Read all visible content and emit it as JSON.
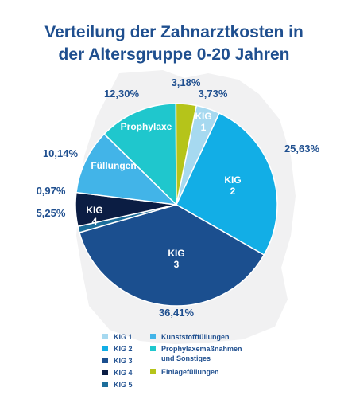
{
  "title": {
    "line1": "Verteilung der Zahnarztkosten in",
    "line2": "der Altersgruppe 0-20 Jahren"
  },
  "chart_data": {
    "type": "pie",
    "slices": [
      {
        "key": "kig1",
        "label": "KIG\n1",
        "value": 3.73,
        "pct_text": "3,73%",
        "color": "#a6d9f0"
      },
      {
        "key": "kig2",
        "label": "KIG\n2",
        "value": 25.63,
        "pct_text": "25,63%",
        "color": "#12aee6"
      },
      {
        "key": "kig3",
        "label": "KIG\n3",
        "value": 36.41,
        "pct_text": "36,41%",
        "color": "#1b4f8f"
      },
      {
        "key": "kig5",
        "label": "",
        "value": 0.97,
        "pct_text": "",
        "color": "#1c6e9b"
      },
      {
        "key": "kig4",
        "label": "KIG\n4",
        "value": 5.25,
        "pct_text": "5,25%",
        "color": "#0b1d43"
      },
      {
        "key": "ghost",
        "label": "",
        "value": 0,
        "pct_text": "0,97%",
        "color": "#1c6e9b"
      },
      {
        "key": "fuellungen",
        "label": "Füllungen",
        "value": 10.14,
        "pct_text": "10,14%",
        "color": "#42b4e8"
      },
      {
        "key": "prophylaxe",
        "label": "Prophylaxe",
        "value": 12.3,
        "pct_text": "12,30%",
        "color": "#1fc7cd"
      },
      {
        "key": "einlage",
        "label": "",
        "value": 3.18,
        "pct_text": "3,18%",
        "color": "#b5c41a"
      }
    ]
  },
  "legend": {
    "left": [
      {
        "label": "KIG 1",
        "color": "#a6d9f0"
      },
      {
        "label": "KIG 2",
        "color": "#12aee6"
      },
      {
        "label": "KIG 3",
        "color": "#1b4f8f"
      },
      {
        "label": "KIG 4",
        "color": "#0b1d43"
      },
      {
        "label": "KIG 5",
        "color": "#1c6e9b"
      }
    ],
    "right": [
      {
        "label": "Kunststofffüllungen",
        "color": "#42b4e8"
      },
      {
        "label": "Prophylaxemaßnahmen\nund Sonstiges",
        "color": "#1fc7cd"
      },
      {
        "label": "Einlagefüllungen",
        "color": "#b5c41a"
      }
    ]
  }
}
